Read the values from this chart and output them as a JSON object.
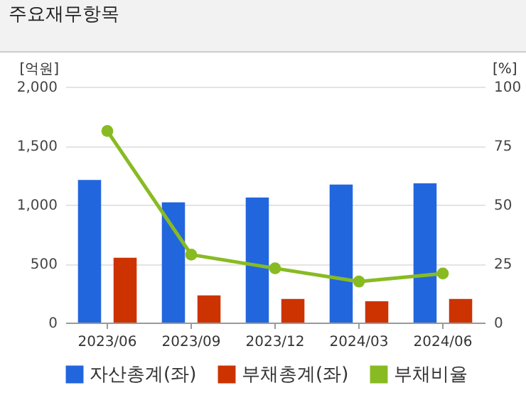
{
  "chart_data": {
    "type": "bar",
    "title": "주요재무항목",
    "ylabel": "[억원]",
    "y2label": "[%]",
    "categories": [
      "2023/06",
      "2023/09",
      "2023/12",
      "2024/03",
      "2024/06"
    ],
    "series": [
      {
        "name": "자산총계(좌)",
        "color": "#2266dd",
        "values": [
          1210,
          1020,
          1060,
          1170,
          1180
        ]
      },
      {
        "name": "부채총계(좌)",
        "color": "#cc3300",
        "values": [
          550,
          230,
          200,
          180,
          200
        ]
      },
      {
        "name": "부채비율",
        "type": "line",
        "axis": "y2",
        "color": "#88bb22",
        "values": [
          81.2,
          28.8,
          23,
          17.4,
          20.8
        ]
      }
    ],
    "ylim": [
      0,
      2000
    ],
    "yticks": [
      0,
      {
        "value": 500,
        "label": "500"
      },
      {
        "value": 1000,
        "label": "1,000"
      },
      {
        "value": 1500,
        "label": "1,500"
      },
      {
        "value": 2000,
        "label": "2,000"
      }
    ],
    "y2lim": [
      0,
      100
    ],
    "y2ticks": [
      0,
      25,
      50,
      75,
      100
    ],
    "grid": "y",
    "legend": "bottom",
    "marker": "circle"
  }
}
